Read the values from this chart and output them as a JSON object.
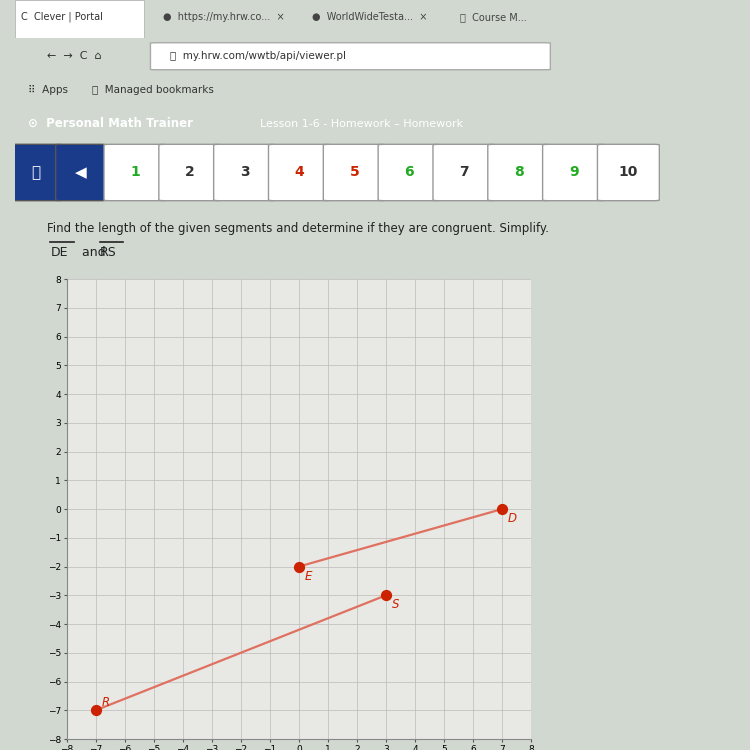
{
  "title_text": "Find the length of the given segments and determine if they are congruent. Simplify.",
  "D": [
    7,
    0
  ],
  "E": [
    0,
    -2
  ],
  "R": [
    -7,
    -7
  ],
  "S": [
    3,
    -3
  ],
  "point_color": "#cc2200",
  "line_color": "#e07060",
  "grid_color": "#bbbbbb",
  "axis_color": "#222222",
  "xlim": [
    -8,
    8
  ],
  "ylim": [
    -8,
    8
  ],
  "background_color": "#d0d8d0",
  "white_bg": "#ffffff",
  "teal_bar": "#1a7070",
  "nav_btn_blue": "#2255bb",
  "nav_btn_light": "#e8e8e8",
  "tab_bar_bg": "#cccccc",
  "plot_bg": "#e8e8e4",
  "browser_left_dark": "#222222"
}
